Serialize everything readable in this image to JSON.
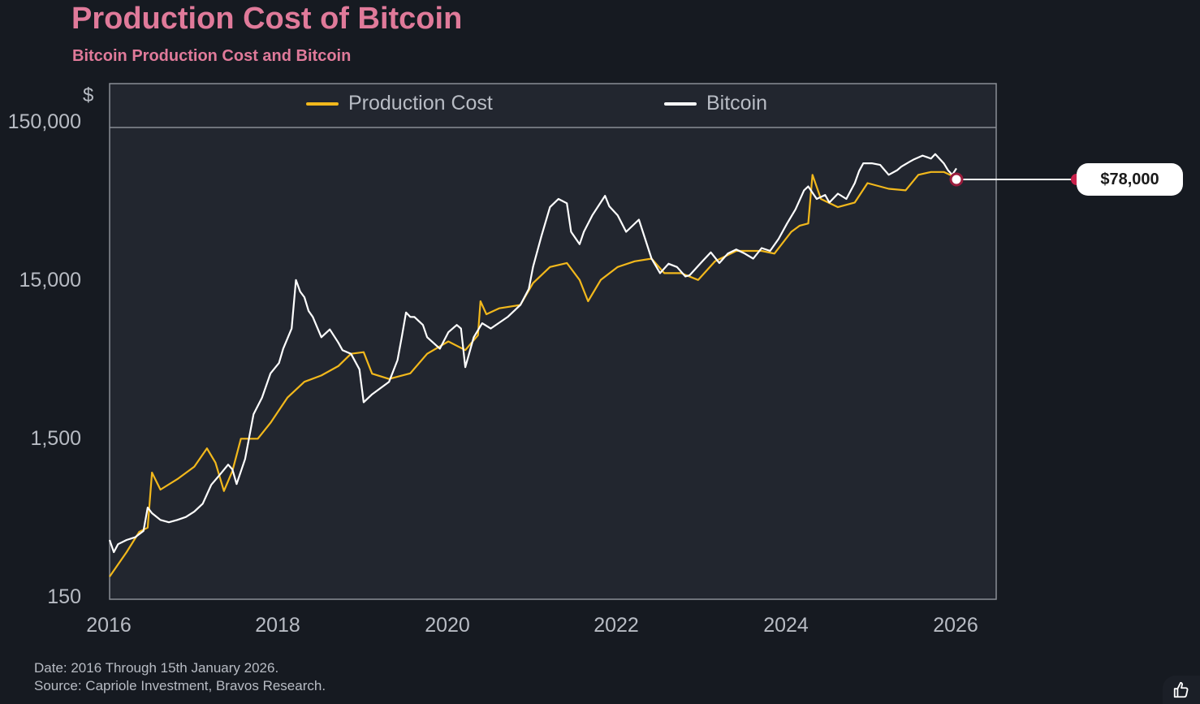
{
  "title": "Production Cost of Bitcoin",
  "subtitle": "Bitcoin Production Cost and Bitcoin",
  "footer": {
    "date": "Date: 2016 Through 15th January 2026.",
    "source": "Source: Capriole Investment, Bravos Research."
  },
  "callout": {
    "label": "$78,000",
    "value": 78000,
    "year": 2026.0
  },
  "icons": {
    "feedback": "thumbs-up-icon"
  },
  "colors": {
    "production_cost": "#f2b81c",
    "bitcoin": "#ffffff",
    "title": "#e07a9a",
    "marker": "#c8204a"
  },
  "chart_data": {
    "type": "line",
    "title": "Production Cost of Bitcoin",
    "subtitle": "Bitcoin Production Cost and Bitcoin",
    "ylabel": "$",
    "xlabel": "",
    "yscale": "log",
    "ylim": [
      150,
      150000
    ],
    "xlim": [
      2016,
      2026.5
    ],
    "yticks": [
      150,
      1500,
      15000,
      150000
    ],
    "ytick_labels": [
      "150",
      "1,500",
      "15,000",
      "150,000"
    ],
    "xticks": [
      2016,
      2018,
      2020,
      2022,
      2024,
      2026
    ],
    "xtick_labels": [
      "2016",
      "2018",
      "2020",
      "2022",
      "2024",
      "2026"
    ],
    "legend": {
      "position": "top",
      "entries": [
        "Production Cost",
        "Bitcoin"
      ]
    },
    "grid": false,
    "series": [
      {
        "name": "Production Cost",
        "color": "#f2b81c",
        "points": [
          [
            2016.0,
            206
          ],
          [
            2016.2,
            294
          ],
          [
            2016.35,
            395
          ],
          [
            2016.45,
            420
          ],
          [
            2016.5,
            935
          ],
          [
            2016.6,
            730
          ],
          [
            2016.8,
            850
          ],
          [
            2017.0,
            1020
          ],
          [
            2017.15,
            1330
          ],
          [
            2017.25,
            1080
          ],
          [
            2017.35,
            715
          ],
          [
            2017.45,
            955
          ],
          [
            2017.55,
            1530
          ],
          [
            2017.75,
            1530
          ],
          [
            2017.9,
            1930
          ],
          [
            2018.1,
            2780
          ],
          [
            2018.3,
            3500
          ],
          [
            2018.5,
            3840
          ],
          [
            2018.7,
            4400
          ],
          [
            2018.85,
            5260
          ],
          [
            2019.0,
            5390
          ],
          [
            2019.1,
            3940
          ],
          [
            2019.3,
            3650
          ],
          [
            2019.55,
            3960
          ],
          [
            2019.75,
            5260
          ],
          [
            2020.0,
            6300
          ],
          [
            2020.2,
            5550
          ],
          [
            2020.35,
            6900
          ],
          [
            2020.38,
            11300
          ],
          [
            2020.45,
            9350
          ],
          [
            2020.6,
            10200
          ],
          [
            2020.85,
            10700
          ],
          [
            2021.0,
            14700
          ],
          [
            2021.2,
            18600
          ],
          [
            2021.4,
            19700
          ],
          [
            2021.55,
            15400
          ],
          [
            2021.65,
            11300
          ],
          [
            2021.8,
            15400
          ],
          [
            2022.0,
            18600
          ],
          [
            2022.2,
            20200
          ],
          [
            2022.4,
            21000
          ],
          [
            2022.55,
            17000
          ],
          [
            2022.75,
            17000
          ],
          [
            2022.95,
            15400
          ],
          [
            2023.15,
            20200
          ],
          [
            2023.4,
            23500
          ],
          [
            2023.7,
            23500
          ],
          [
            2023.85,
            22600
          ],
          [
            2024.05,
            31000
          ],
          [
            2024.15,
            33900
          ],
          [
            2024.25,
            35000
          ],
          [
            2024.3,
            71000
          ],
          [
            2024.4,
            50000
          ],
          [
            2024.6,
            44400
          ],
          [
            2024.8,
            47500
          ],
          [
            2024.95,
            63000
          ],
          [
            2025.2,
            58000
          ],
          [
            2025.4,
            56700
          ],
          [
            2025.55,
            71000
          ],
          [
            2025.7,
            74000
          ],
          [
            2025.85,
            74000
          ],
          [
            2026.0,
            68000
          ]
        ]
      },
      {
        "name": "Bitcoin",
        "color": "#ffffff",
        "points": [
          [
            2016.0,
            351
          ],
          [
            2016.05,
            294
          ],
          [
            2016.1,
            330
          ],
          [
            2016.2,
            351
          ],
          [
            2016.3,
            365
          ],
          [
            2016.4,
            400
          ],
          [
            2016.45,
            562
          ],
          [
            2016.5,
            518
          ],
          [
            2016.6,
            470
          ],
          [
            2016.7,
            454
          ],
          [
            2016.8,
            470
          ],
          [
            2016.9,
            490
          ],
          [
            2017.0,
            530
          ],
          [
            2017.1,
            595
          ],
          [
            2017.2,
            783
          ],
          [
            2017.3,
            905
          ],
          [
            2017.4,
            1050
          ],
          [
            2017.45,
            980
          ],
          [
            2017.5,
            792
          ],
          [
            2017.6,
            1140
          ],
          [
            2017.7,
            2185
          ],
          [
            2017.8,
            2780
          ],
          [
            2017.9,
            3960
          ],
          [
            2018.0,
            4600
          ],
          [
            2018.05,
            5670
          ],
          [
            2018.15,
            7600
          ],
          [
            2018.2,
            15400
          ],
          [
            2018.25,
            13000
          ],
          [
            2018.3,
            11990
          ],
          [
            2018.35,
            9800
          ],
          [
            2018.4,
            8990
          ],
          [
            2018.5,
            6700
          ],
          [
            2018.6,
            7500
          ],
          [
            2018.7,
            6200
          ],
          [
            2018.75,
            5550
          ],
          [
            2018.85,
            5260
          ],
          [
            2018.95,
            4200
          ],
          [
            2019.0,
            2600
          ],
          [
            2019.1,
            2920
          ],
          [
            2019.3,
            3500
          ],
          [
            2019.4,
            4800
          ],
          [
            2019.45,
            6700
          ],
          [
            2019.5,
            9600
          ],
          [
            2019.55,
            9000
          ],
          [
            2019.6,
            8990
          ],
          [
            2019.7,
            8000
          ],
          [
            2019.75,
            6700
          ],
          [
            2019.9,
            5670
          ],
          [
            2020.0,
            7200
          ],
          [
            2020.1,
            8000
          ],
          [
            2020.15,
            7600
          ],
          [
            2020.2,
            4330
          ],
          [
            2020.3,
            6700
          ],
          [
            2020.4,
            8200
          ],
          [
            2020.5,
            7600
          ],
          [
            2020.7,
            8990
          ],
          [
            2020.85,
            10700
          ],
          [
            2020.95,
            13500
          ],
          [
            2021.0,
            18600
          ],
          [
            2021.1,
            29200
          ],
          [
            2021.2,
            44400
          ],
          [
            2021.3,
            50000
          ],
          [
            2021.4,
            47000
          ],
          [
            2021.45,
            31000
          ],
          [
            2021.55,
            25900
          ],
          [
            2021.6,
            31000
          ],
          [
            2021.7,
            39400
          ],
          [
            2021.85,
            52400
          ],
          [
            2021.9,
            45000
          ],
          [
            2022.0,
            39400
          ],
          [
            2022.1,
            31000
          ],
          [
            2022.25,
            37000
          ],
          [
            2022.4,
            21000
          ],
          [
            2022.5,
            17000
          ],
          [
            2022.6,
            19500
          ],
          [
            2022.7,
            18600
          ],
          [
            2022.8,
            16200
          ],
          [
            2022.85,
            16500
          ],
          [
            2023.0,
            20200
          ],
          [
            2023.1,
            23000
          ],
          [
            2023.2,
            19700
          ],
          [
            2023.3,
            22600
          ],
          [
            2023.4,
            24000
          ],
          [
            2023.5,
            22600
          ],
          [
            2023.6,
            21000
          ],
          [
            2023.7,
            24500
          ],
          [
            2023.8,
            23500
          ],
          [
            2023.9,
            28000
          ],
          [
            2024.0,
            35000
          ],
          [
            2024.1,
            43000
          ],
          [
            2024.2,
            56700
          ],
          [
            2024.25,
            60000
          ],
          [
            2024.35,
            50000
          ],
          [
            2024.45,
            53000
          ],
          [
            2024.5,
            47500
          ],
          [
            2024.6,
            54000
          ],
          [
            2024.7,
            50000
          ],
          [
            2024.8,
            63000
          ],
          [
            2024.85,
            75000
          ],
          [
            2024.9,
            84000
          ],
          [
            2025.0,
            84000
          ],
          [
            2025.1,
            82000
          ],
          [
            2025.2,
            71000
          ],
          [
            2025.3,
            76000
          ],
          [
            2025.35,
            80000
          ],
          [
            2025.45,
            86000
          ],
          [
            2025.5,
            89000
          ],
          [
            2025.6,
            94000
          ],
          [
            2025.7,
            90000
          ],
          [
            2025.75,
            96000
          ],
          [
            2025.85,
            84000
          ],
          [
            2025.9,
            76000
          ],
          [
            2025.95,
            71000
          ],
          [
            2026.0,
            78000
          ]
        ]
      }
    ]
  }
}
